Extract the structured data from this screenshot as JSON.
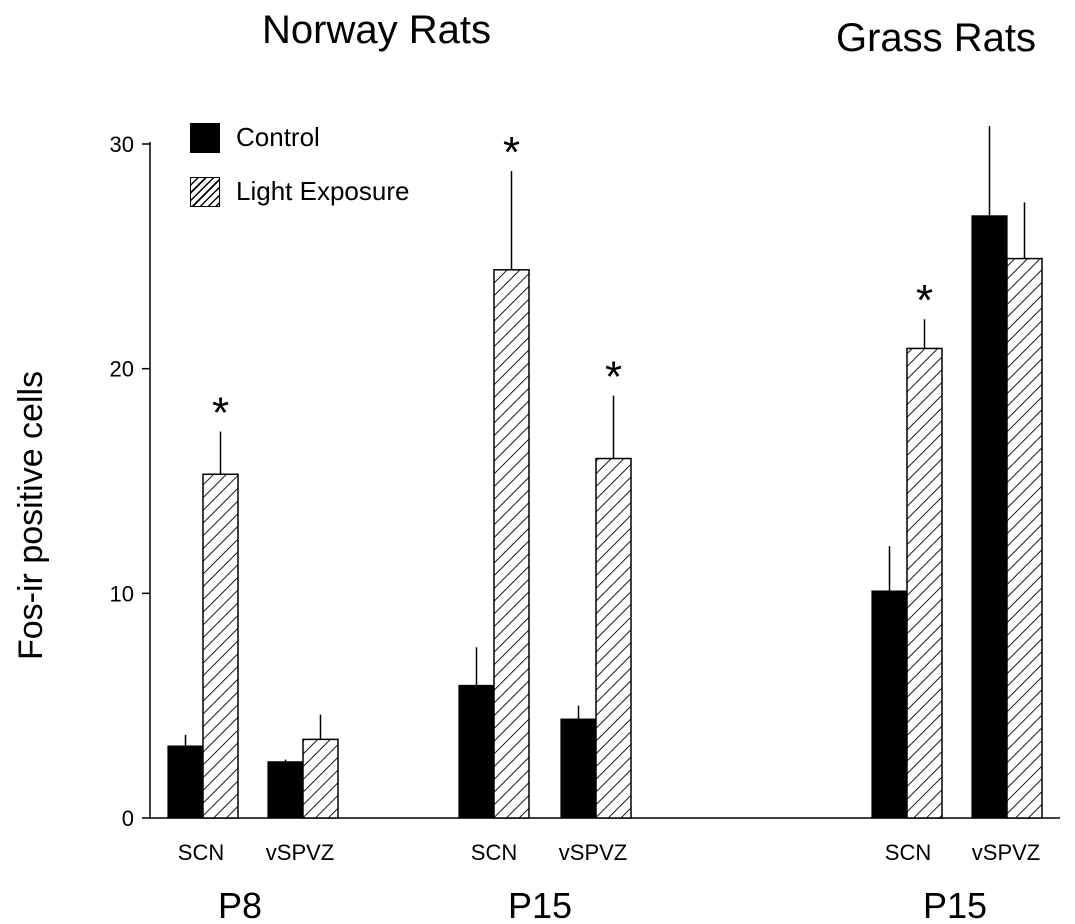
{
  "chart_data": {
    "type": "bar",
    "panel_titles": [
      "Norway Rats",
      "Grass Rats"
    ],
    "ylabel": "Fos-ir positive cells",
    "ylim": [
      0,
      30
    ],
    "yticks": [
      0,
      10,
      20,
      30
    ],
    "legend": {
      "placement": "top-left",
      "entries": [
        "Control",
        "Light Exposure"
      ]
    },
    "series": [
      {
        "name": "Control",
        "fill": "solid",
        "color": "#000000"
      },
      {
        "name": "Light Exposure",
        "fill": "hatched",
        "color": "#ffffff"
      }
    ],
    "groups": [
      {
        "age": "P8",
        "panel": "Norway Rats",
        "regions": [
          {
            "region": "SCN",
            "control": 3.2,
            "control_err": 0.5,
            "light": 15.3,
            "light_err": 1.9,
            "light_significant": true
          },
          {
            "region": "vSPVZ",
            "control": 2.5,
            "control_err": 0.1,
            "light": 3.5,
            "light_err": 1.1,
            "light_significant": false
          }
        ]
      },
      {
        "age": "P15",
        "panel": "Norway Rats",
        "regions": [
          {
            "region": "SCN",
            "control": 5.9,
            "control_err": 1.7,
            "light": 24.4,
            "light_err": 4.4,
            "light_significant": true
          },
          {
            "region": "vSPVZ",
            "control": 4.4,
            "control_err": 0.6,
            "light": 16.0,
            "light_err": 2.8,
            "light_significant": true
          }
        ]
      },
      {
        "age": "P15",
        "panel": "Grass Rats",
        "regions": [
          {
            "region": "SCN",
            "control": 10.1,
            "control_err": 2.0,
            "light": 20.9,
            "light_err": 1.3,
            "light_significant": true
          },
          {
            "region": "vSPVZ",
            "control": 26.8,
            "control_err": 4.0,
            "light": 24.9,
            "light_err": 2.5,
            "light_significant": false
          }
        ]
      }
    ],
    "significance_marker": "*",
    "grid": false
  }
}
